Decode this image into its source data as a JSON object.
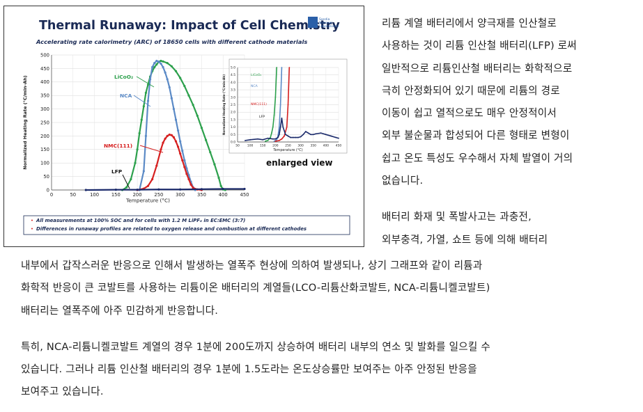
{
  "figure": {
    "title": "Thermal Runaway: Impact of Cell Chemistry",
    "subtitle": "Accelerating rate calorimetry (ARC) of 18650 cells with different cathode materials",
    "logo_text": [
      "Sandia",
      "National",
      "Laboratories"
    ],
    "enlarged_label": "enlarged view",
    "notes": [
      "All measurements at 100% SOC and for cells with 1.2 M LiPF₆ in EC:EMC (3:7)",
      "Differences in runaway profiles are related to oxygen release and combustion at different cathodes"
    ]
  },
  "chart_data": [
    {
      "type": "line",
      "title": "",
      "xlabel": "Temperature (°C)",
      "ylabel": "Normalized Heating Rate (°C/min-Ah)",
      "xlim": [
        0,
        450
      ],
      "ylim": [
        0,
        500
      ],
      "xticks": [
        0,
        50,
        100,
        150,
        200,
        250,
        300,
        350,
        400,
        450
      ],
      "yticks": [
        0,
        50,
        100,
        150,
        200,
        250,
        300,
        350,
        400,
        450,
        500
      ],
      "colors": {
        "LiCoO2": "#2ca04c",
        "NCA": "#5b8ac6",
        "NMC(111)": "#d62020",
        "LFP": "#1b2a6b"
      },
      "series": [
        {
          "name": "LiCoO₂",
          "x": [
            165,
            175,
            185,
            195,
            200,
            205,
            210,
            215,
            220,
            225,
            230,
            235,
            240,
            245,
            250,
            255,
            260,
            270,
            280,
            290,
            300,
            310,
            320,
            330,
            340,
            350,
            360,
            370,
            380,
            390,
            395,
            400,
            405
          ],
          "y": [
            0,
            10,
            40,
            100,
            150,
            210,
            260,
            310,
            360,
            390,
            420,
            440,
            455,
            465,
            475,
            478,
            476,
            470,
            458,
            440,
            415,
            385,
            350,
            315,
            275,
            230,
            185,
            140,
            95,
            45,
            15,
            2,
            0
          ]
        },
        {
          "name": "NCA",
          "x": [
            205,
            215,
            220,
            225,
            230,
            235,
            240,
            245,
            250,
            255,
            260,
            265,
            270,
            275,
            280,
            285,
            290,
            295,
            300,
            305,
            310,
            315,
            320,
            325,
            330,
            335
          ],
          "y": [
            0,
            70,
            200,
            330,
            410,
            455,
            470,
            478,
            475,
            468,
            455,
            435,
            410,
            380,
            340,
            300,
            260,
            220,
            180,
            145,
            110,
            80,
            55,
            30,
            10,
            0
          ]
        },
        {
          "name": "NMC(111)",
          "x": [
            200,
            215,
            225,
            235,
            245,
            255,
            260,
            265,
            270,
            275,
            280,
            285,
            290,
            295,
            300,
            305,
            310,
            315,
            320,
            325,
            330,
            340,
            350
          ],
          "y": [
            0,
            5,
            15,
            40,
            90,
            150,
            175,
            190,
            200,
            205,
            203,
            195,
            180,
            160,
            135,
            110,
            85,
            60,
            40,
            20,
            8,
            2,
            0
          ]
        },
        {
          "name": "LFP",
          "x": [
            80,
            150,
            200,
            250,
            300,
            350,
            400,
            450
          ],
          "y": [
            0,
            1,
            1,
            2,
            2,
            3,
            4,
            4
          ]
        }
      ],
      "labels": [
        "LiCoO₂",
        "NCA",
        "NMC(111)",
        "LFP"
      ]
    },
    {
      "type": "line",
      "title": "",
      "xlabel": "Temperature (°C)",
      "ylabel": "Normalized Heating Rate (°C/min-Ah)",
      "xlim": [
        50,
        450
      ],
      "ylim": [
        0,
        5.0
      ],
      "xticks": [
        50,
        100,
        150,
        200,
        250,
        300,
        350,
        400,
        450
      ],
      "yticks": [
        0,
        0.5,
        1.0,
        1.5,
        2.0,
        2.5,
        3.0,
        3.5,
        4.0,
        4.5,
        5.0
      ],
      "series": [
        {
          "name": "LiCoO₂",
          "x": [
            160,
            170,
            180,
            185,
            190,
            195,
            200,
            205
          ],
          "y": [
            0.05,
            0.1,
            0.3,
            0.6,
            1.0,
            1.8,
            3.0,
            5.0
          ]
        },
        {
          "name": "NCA",
          "x": [
            195,
            205,
            210,
            215,
            220,
            225
          ],
          "y": [
            0.05,
            0.15,
            0.4,
            1.0,
            2.5,
            5.0
          ]
        },
        {
          "name": "NMC(111)",
          "x": [
            200,
            215,
            225,
            235,
            245,
            250,
            255
          ],
          "y": [
            0.05,
            0.1,
            0.2,
            0.4,
            1.0,
            2.5,
            5.0
          ]
        },
        {
          "name": "LFP",
          "x": [
            80,
            100,
            130,
            150,
            170,
            190,
            200,
            210,
            215,
            220,
            225,
            230,
            240,
            250,
            260,
            270,
            280,
            290,
            300,
            310,
            320,
            330,
            340,
            350,
            360,
            380,
            400,
            420,
            440,
            450
          ],
          "y": [
            0.1,
            0.15,
            0.2,
            0.15,
            0.25,
            0.2,
            0.2,
            0.3,
            0.5,
            1.0,
            1.6,
            1.0,
            0.5,
            0.4,
            0.3,
            0.3,
            0.3,
            0.3,
            0.35,
            0.5,
            0.7,
            0.6,
            0.5,
            0.5,
            0.55,
            0.6,
            0.5,
            0.4,
            0.3,
            0.25
          ]
        }
      ],
      "labels": [
        "LiCoO₂",
        "NCA",
        "NMC(111)",
        "LFP"
      ]
    }
  ],
  "side_text": {
    "para1": [
      "리튬 계열 배터리에서 양극재를 인산철로",
      "사용하는 것이 리튬 인산철 배터리(LFP) 로써",
      "일반적으로 리튬인산철 배터리는 화학적으로",
      "극히 안정화되어 있기 때문에 리튬의 경로",
      "이동이 쉽고 열적으로도 매우 안정적이서",
      "외부 불순물과 합성되어 다른 형태로 변형이",
      "쉽고 온도 특성도 우수해서 자체 발열이 거의",
      "없습니다."
    ],
    "para2": [
      "배터리 화재 및 폭발사고는 과충전,",
      "외부충격, 가열, 쇼트 등에 의해 배터리"
    ]
  },
  "body_text": {
    "para1": [
      "내부에서 갑작스러운 반응으로 인해서 발생하는 열폭주 현상에 의하여 발생되나, 상기 그래프와 같이 리튬과",
      "화학적 반응이 큰 코발트를 사용하는 리튬이온 배터리의 계열들(LCO-리튬산화코발트, NCA-리튬니켈코발트)",
      "배터리는 열폭주에 아주 민감하게 반응합니다."
    ],
    "para2": [
      "특히, NCA-리튬니켈코발트 계열의 경우 1분에 200도까지 상승하여 배터리 내부의 연소 및 발화를 일으킬 수",
      "있습니다. 그러나 리튬 인산철 배터리의 경우 1분에 1.5도라는 온도상승률만 보여주는 아주 안정된 반응을",
      "보여주고 있습니다."
    ]
  }
}
